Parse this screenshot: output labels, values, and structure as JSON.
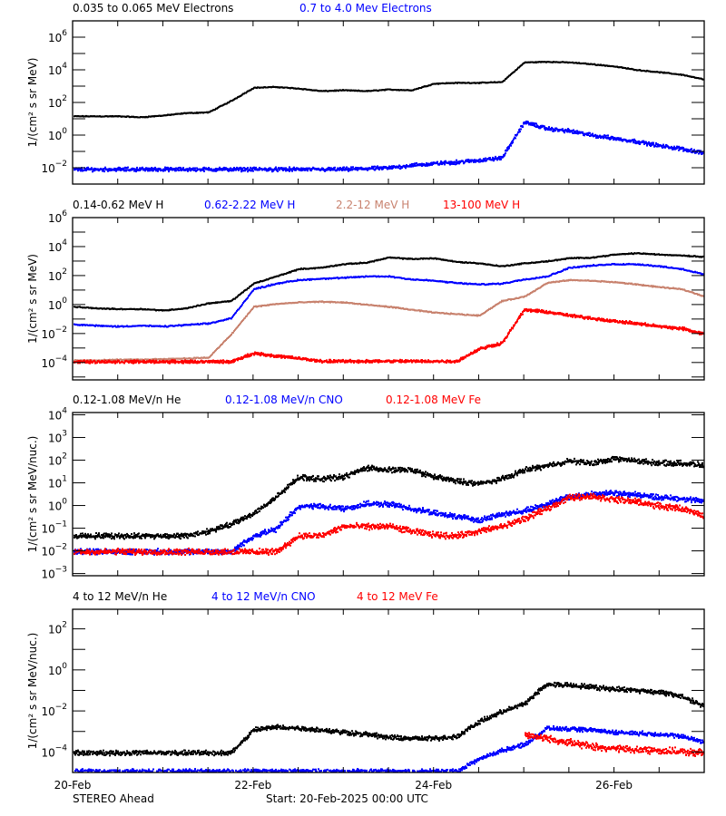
{
  "footer": {
    "spacecraft": "STEREO Ahead",
    "start": "Start: 20-Feb-2025 00:00 UTC"
  },
  "xaxis": {
    "range": [
      "2025-02-20 00:00",
      "2025-02-27 00:00"
    ],
    "tick_labels": [
      "20-Feb",
      "22-Feb",
      "24-Feb",
      "26-Feb"
    ],
    "tick_days": [
      0,
      2,
      4,
      6
    ],
    "minor_tick_hours": 12
  },
  "colors": {
    "black": "#000000",
    "blue": "#0000ff",
    "brown": "#c8826e",
    "red": "#ff0000"
  },
  "chart_data": [
    {
      "type": "scatter",
      "ylabel": "1/(cm² s sr MeV)",
      "yscale": "log",
      "ylim": [
        0.001,
        10000000.0
      ],
      "ytick_exponents": [
        -2,
        0,
        2,
        4,
        6
      ],
      "x": [
        "02-20 00:00",
        "02-20 06:00",
        "02-20 12:00",
        "02-20 18:00",
        "02-21 00:00",
        "02-21 06:00",
        "02-21 12:00",
        "02-21 18:00",
        "02-22 00:00",
        "02-22 06:00",
        "02-22 12:00",
        "02-22 18:00",
        "02-23 00:00",
        "02-23 06:00",
        "02-23 12:00",
        "02-23 18:00",
        "02-24 00:00",
        "02-24 06:00",
        "02-24 12:00",
        "02-24 18:00",
        "02-25 00:00",
        "02-25 06:00",
        "02-25 12:00",
        "02-25 18:00",
        "02-26 00:00",
        "02-26 06:00",
        "02-26 12:00",
        "02-26 18:00",
        "02-27 00:00"
      ],
      "series": [
        {
          "name": "0.035 to 0.065 MeV Electrons",
          "color": "#000000",
          "values": [
            16,
            16,
            16,
            14,
            18,
            25,
            28,
            140,
            900,
            1000,
            800,
            560,
            630,
            560,
            700,
            630,
            1600,
            1800,
            1800,
            2000,
            32000,
            35000,
            32000,
            25000,
            18000,
            11000,
            8000,
            5600,
            2800
          ]
        },
        {
          "name": "0.7 to 4.0 Mev Electrons",
          "color": "#0000ff",
          "values": [
            0.009,
            0.009,
            0.009,
            0.009,
            0.009,
            0.009,
            0.009,
            0.009,
            0.009,
            0.009,
            0.009,
            0.009,
            0.009,
            0.01,
            0.011,
            0.016,
            0.02,
            0.025,
            0.032,
            0.045,
            7,
            2.8,
            2,
            1.1,
            0.7,
            0.45,
            0.25,
            0.16,
            0.09
          ]
        }
      ]
    },
    {
      "type": "scatter",
      "ylabel": "1/(cm² s sr MeV)",
      "yscale": "log",
      "ylim": [
        6.3e-06,
        1000000.0
      ],
      "ytick_exponents": [
        -4,
        -2,
        0,
        2,
        4,
        6
      ],
      "x": [
        "02-20 00:00",
        "02-20 06:00",
        "02-20 12:00",
        "02-20 18:00",
        "02-21 00:00",
        "02-21 06:00",
        "02-21 12:00",
        "02-21 18:00",
        "02-22 00:00",
        "02-22 06:00",
        "02-22 12:00",
        "02-22 18:00",
        "02-23 00:00",
        "02-23 06:00",
        "02-23 12:00",
        "02-23 18:00",
        "02-24 00:00",
        "02-24 06:00",
        "02-24 12:00",
        "02-24 18:00",
        "02-25 00:00",
        "02-25 06:00",
        "02-25 12:00",
        "02-25 18:00",
        "02-26 00:00",
        "02-26 06:00",
        "02-26 12:00",
        "02-26 18:00",
        "02-27 00:00"
      ],
      "series": [
        {
          "name": "0.14-0.62 MeV H",
          "color": "#000000",
          "values": [
            0.8,
            0.63,
            0.56,
            0.56,
            0.45,
            0.63,
            1.4,
            2,
            32,
            100,
            320,
            400,
            700,
            900,
            2000,
            1600,
            1800,
            1000,
            800,
            500,
            800,
            1100,
            1800,
            2000,
            3200,
            4000,
            3200,
            2800,
            2200
          ]
        },
        {
          "name": "0.62-2.22 MeV H",
          "color": "#0000ff",
          "values": [
            0.05,
            0.04,
            0.035,
            0.04,
            0.035,
            0.045,
            0.056,
            0.13,
            13,
            32,
            56,
            70,
            80,
            100,
            100,
            63,
            50,
            35,
            28,
            32,
            63,
            100,
            400,
            560,
            700,
            700,
            500,
            320,
            130
          ]
        },
        {
          "name": "2.2-12 MeV H",
          "color": "#c8826e",
          "values": [
            0.00016,
            0.00016,
            0.00018,
            0.00018,
            0.0002,
            0.00022,
            0.00025,
            0.01,
            0.8,
            1.26,
            1.6,
            1.8,
            1.6,
            1.1,
            0.8,
            0.5,
            0.32,
            0.25,
            0.2,
            2,
            4,
            35,
            56,
            50,
            40,
            28,
            18,
            13,
            4
          ]
        },
        {
          "name": "13-100 MeV H",
          "color": "#ff0000",
          "values": [
            0.00013,
            0.00013,
            0.00013,
            0.00013,
            0.00013,
            0.00013,
            0.00013,
            0.00013,
            0.0005,
            0.00032,
            0.00022,
            0.00014,
            0.00014,
            0.00014,
            0.00014,
            0.00014,
            0.00014,
            0.00014,
            0.001,
            0.0025,
            0.5,
            0.35,
            0.2,
            0.13,
            0.08,
            0.056,
            0.035,
            0.025,
            0.01
          ]
        }
      ]
    },
    {
      "type": "scatter",
      "ylabel": "1/(cm² s sr MeV/nuc.)",
      "yscale": "log",
      "ylim": [
        0.0008,
        12600.0
      ],
      "ytick_exponents": [
        -3,
        -2,
        -1,
        0,
        1,
        2,
        3,
        4
      ],
      "x": [
        "02-20 00:00",
        "02-20 06:00",
        "02-20 12:00",
        "02-20 18:00",
        "02-21 00:00",
        "02-21 06:00",
        "02-21 12:00",
        "02-21 18:00",
        "02-22 00:00",
        "02-22 06:00",
        "02-22 12:00",
        "02-22 18:00",
        "02-23 00:00",
        "02-23 06:00",
        "02-23 12:00",
        "02-23 18:00",
        "02-24 00:00",
        "02-24 06:00",
        "02-24 12:00",
        "02-24 18:00",
        "02-25 00:00",
        "02-25 06:00",
        "02-25 12:00",
        "02-25 18:00",
        "02-26 00:00",
        "02-26 06:00",
        "02-26 12:00",
        "02-26 18:00",
        "02-27 00:00"
      ],
      "series": [
        {
          "name": "0.12-1.08 MeV/n He",
          "color": "#000000",
          "values": [
            0.05,
            0.05,
            0.05,
            0.05,
            0.05,
            0.05,
            0.08,
            0.16,
            0.5,
            2.5,
            20,
            16,
            20,
            50,
            40,
            40,
            20,
            13,
            10,
            16,
            40,
            63,
            100,
            80,
            126,
            100,
            80,
            80,
            63
          ]
        },
        {
          "name": "0.12-1.08 MeV/n CNO",
          "color": "#0000ff",
          "values": [
            0.01,
            0.01,
            0.01,
            0.01,
            0.01,
            0.01,
            0.01,
            0.01,
            0.05,
            0.1,
            1,
            1,
            0.8,
            1.26,
            1.26,
            0.8,
            0.5,
            0.35,
            0.25,
            0.45,
            0.63,
            1.26,
            2.8,
            3.5,
            4,
            3.2,
            2.5,
            2.2,
            1.6
          ]
        },
        {
          "name": "0.12-1.08 MeV Fe",
          "color": "#ff0000",
          "values": [
            0.01,
            0.01,
            0.01,
            0.01,
            0.01,
            0.01,
            0.01,
            0.01,
            0.01,
            0.01,
            0.05,
            0.05,
            0.13,
            0.13,
            0.13,
            0.08,
            0.056,
            0.05,
            0.08,
            0.13,
            0.28,
            0.8,
            2.5,
            2.8,
            2,
            1.6,
            1,
            0.8,
            0.35
          ]
        }
      ]
    },
    {
      "type": "scatter",
      "ylabel": "1/(cm² s sr MeV/nuc.)",
      "yscale": "log",
      "ylim": [
        1e-05,
        900.0
      ],
      "ytick_exponents": [
        -4,
        -2,
        0,
        2
      ],
      "x": [
        "02-20 00:00",
        "02-20 06:00",
        "02-20 12:00",
        "02-20 18:00",
        "02-21 00:00",
        "02-21 06:00",
        "02-21 12:00",
        "02-21 18:00",
        "02-22 00:00",
        "02-22 06:00",
        "02-22 12:00",
        "02-22 18:00",
        "02-23 00:00",
        "02-23 06:00",
        "02-23 12:00",
        "02-23 18:00",
        "02-24 00:00",
        "02-24 06:00",
        "02-24 12:00",
        "02-24 18:00",
        "02-25 00:00",
        "02-25 06:00",
        "02-25 12:00",
        "02-25 18:00",
        "02-26 00:00",
        "02-26 06:00",
        "02-26 12:00",
        "02-26 18:00",
        "02-27 00:00"
      ],
      "series": [
        {
          "name": "4 to 12 MeV/n He",
          "color": "#000000",
          "values": [
            0.0001,
            0.0001,
            0.0001,
            0.0001,
            0.0001,
            0.0001,
            0.0001,
            0.0001,
            0.0013,
            0.0018,
            0.0016,
            0.0013,
            0.001,
            0.0008,
            0.00056,
            0.0005,
            0.0005,
            0.00063,
            0.0032,
            0.01,
            0.025,
            0.22,
            0.2,
            0.16,
            0.13,
            0.11,
            0.09,
            0.056,
            0.018
          ]
        },
        {
          "name": "4 to 12 MeV/n CNO",
          "color": "#0000ff",
          "values": [
            1.26e-05,
            1.26e-05,
            1.26e-05,
            1.26e-05,
            1.26e-05,
            1.26e-05,
            1.26e-05,
            1.26e-05,
            1.26e-05,
            1.26e-05,
            1.26e-05,
            1.26e-05,
            1.26e-05,
            1.26e-05,
            1.26e-05,
            1.26e-05,
            1.26e-05,
            1.26e-05,
            5e-05,
            0.00013,
            0.00025,
            0.0016,
            0.0014,
            0.0013,
            0.001,
            0.0009,
            0.0008,
            0.00063,
            0.00032
          ]
        },
        {
          "name": "4 to 12 MeV Fe",
          "color": "#ff0000",
          "values": [
            null,
            null,
            null,
            null,
            null,
            null,
            null,
            null,
            null,
            null,
            null,
            null,
            null,
            null,
            null,
            null,
            null,
            null,
            null,
            null,
            0.0008,
            0.0005,
            0.00032,
            0.0002,
            0.00016,
            0.00014,
            0.00013,
            0.00011,
            0.0001
          ]
        }
      ]
    }
  ]
}
